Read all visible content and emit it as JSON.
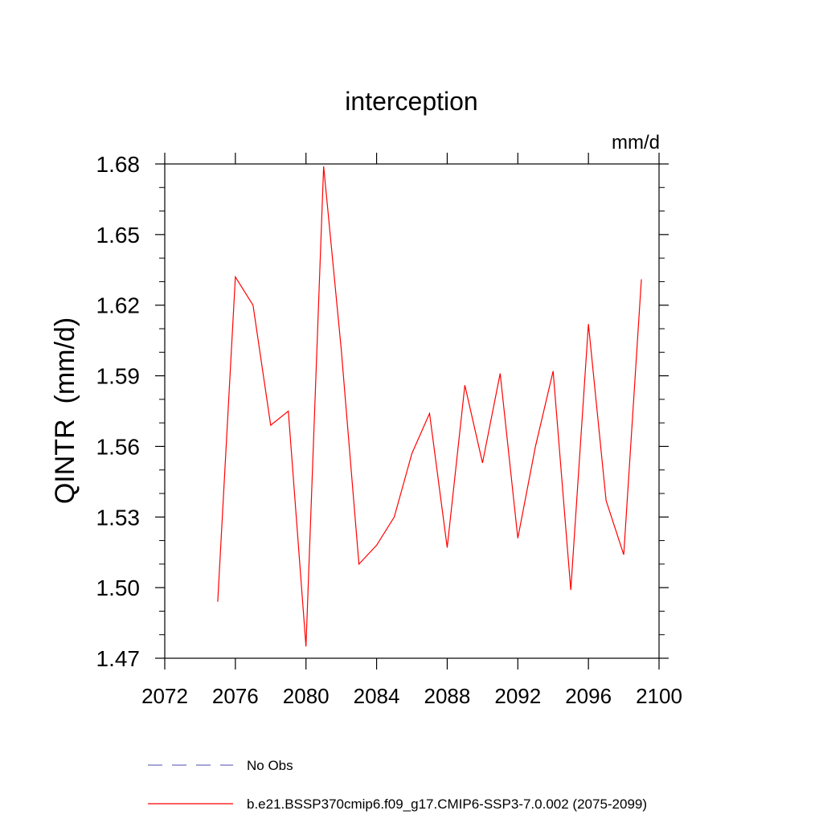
{
  "chart_data": {
    "type": "line",
    "title": "interception",
    "units_label": "mm/d",
    "ylabel": "QINTR  (mm/d)",
    "xlabel": "",
    "xlim": [
      2072,
      2100
    ],
    "ylim": [
      1.47,
      1.68
    ],
    "x_ticks": [
      2072,
      2076,
      2080,
      2084,
      2088,
      2092,
      2096,
      2100
    ],
    "x_tick_labels": [
      "2072",
      "2076",
      "2080",
      "2084",
      "2088",
      "2092",
      "2096",
      "2100"
    ],
    "y_ticks": [
      1.47,
      1.5,
      1.53,
      1.56,
      1.59,
      1.62,
      1.65,
      1.68
    ],
    "y_tick_labels": [
      "1.47",
      "1.50",
      "1.53",
      "1.56",
      "1.59",
      "1.62",
      "1.65",
      "1.68"
    ],
    "grid": false,
    "legend_placement": "bottom",
    "series": [
      {
        "name": "No Obs",
        "color": "#6f6fbf",
        "dash": "dashed",
        "x": [],
        "y": []
      },
      {
        "name": "b.e21.BSSP370cmip6.f09_g17.CMIP6-SSP3-7.0.002 (2075-2099)",
        "color": "#ff0000",
        "dash": "solid",
        "x": [
          2075,
          2076,
          2077,
          2078,
          2079,
          2080,
          2081,
          2082,
          2083,
          2084,
          2085,
          2086,
          2087,
          2088,
          2089,
          2090,
          2091,
          2092,
          2093,
          2094,
          2095,
          2096,
          2097,
          2098,
          2099
        ],
        "y": [
          1.494,
          1.632,
          1.62,
          1.569,
          1.575,
          1.475,
          1.679,
          1.601,
          1.51,
          1.518,
          1.53,
          1.557,
          1.574,
          1.517,
          1.586,
          1.553,
          1.591,
          1.521,
          1.56,
          1.592,
          1.499,
          1.612,
          1.537,
          1.514,
          1.631
        ]
      }
    ]
  }
}
